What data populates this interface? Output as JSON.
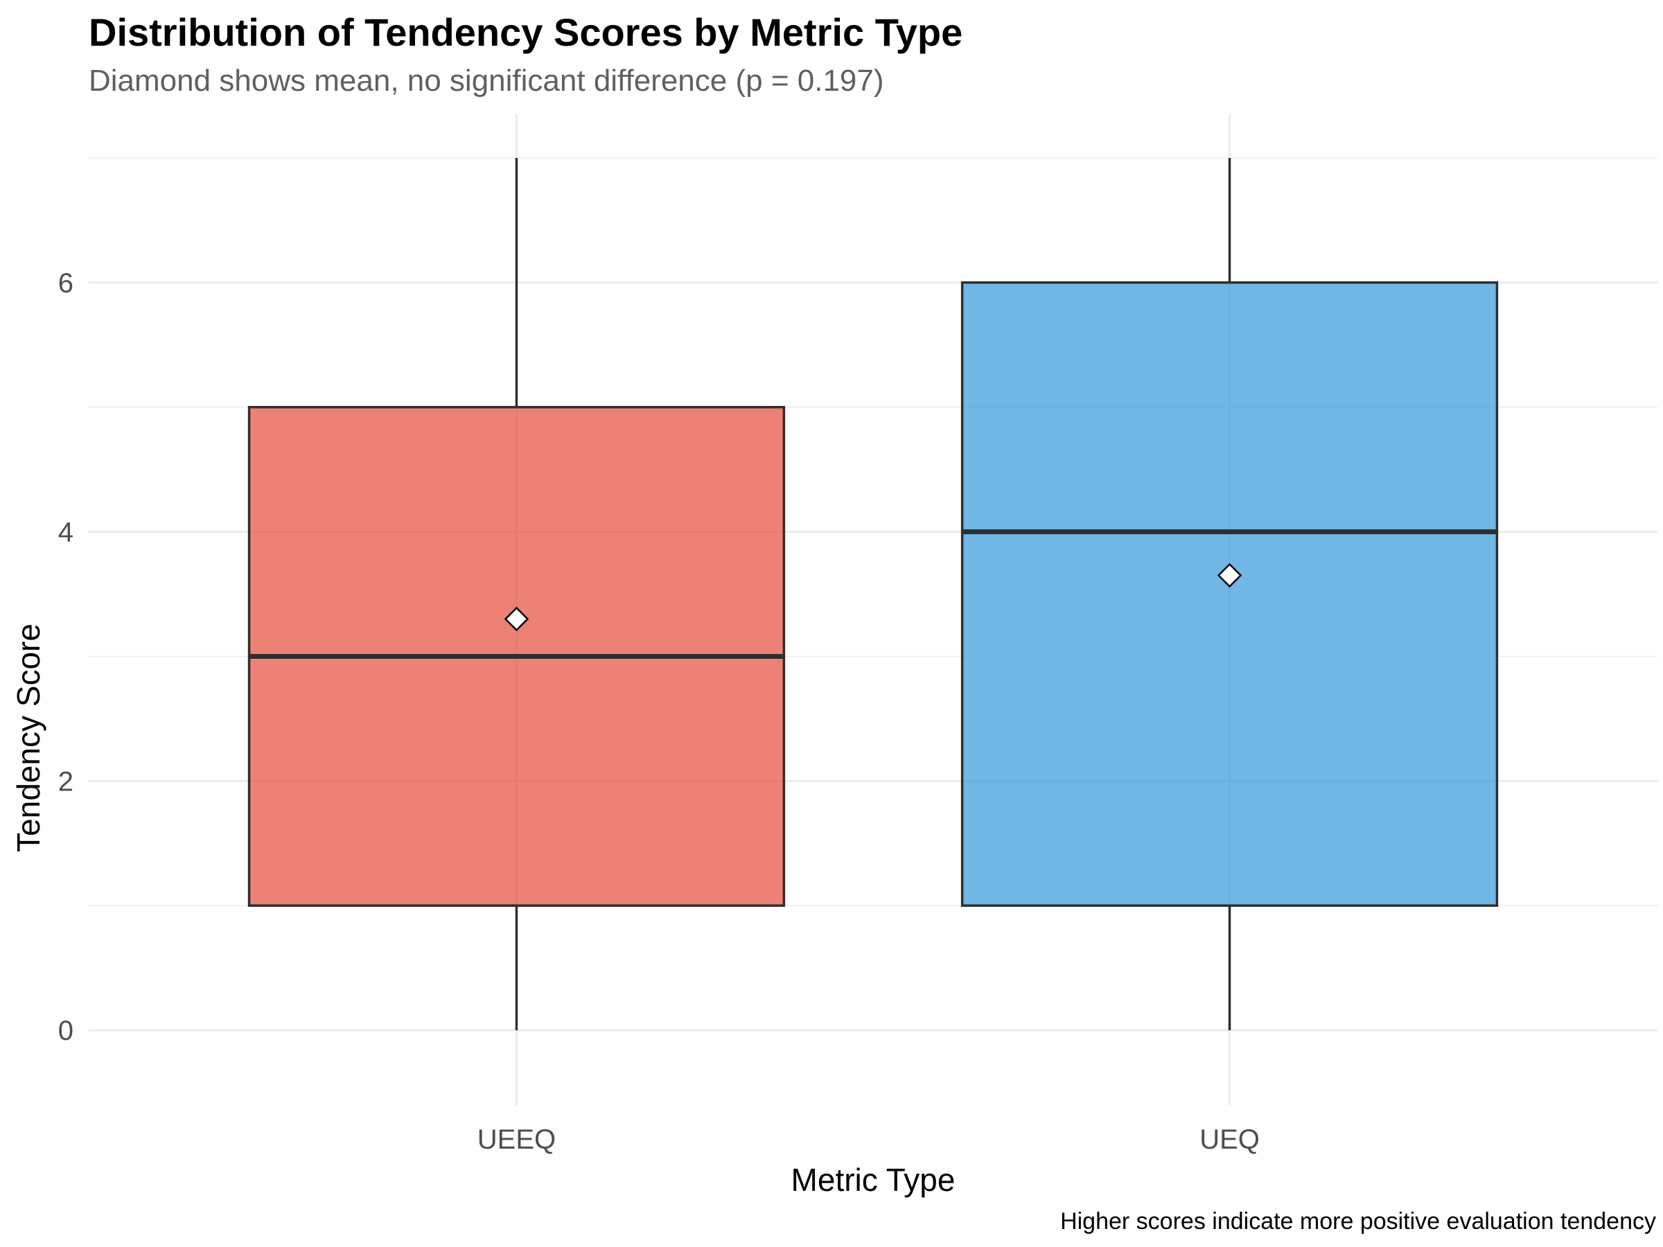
{
  "chart_data": {
    "type": "boxplot",
    "title": "Distribution of Tendency Scores by Metric Type",
    "subtitle": "Diamond shows mean, no significant difference (p = 0.197)",
    "caption": "Higher scores indicate more positive evaluation tendency",
    "xlabel": "Metric Type",
    "ylabel": "Tendency Score",
    "ylim": [
      -0.6,
      7.35
    ],
    "yticks": [
      0,
      2,
      4,
      6
    ],
    "grid": true,
    "legend": "none",
    "categories": [
      "UEEQ",
      "UEQ"
    ],
    "series": [
      {
        "category": "UEEQ",
        "color": "#E74C3C",
        "min": 0,
        "q1": 1,
        "median": 3,
        "q3": 5,
        "max": 7,
        "mean": 3.3
      },
      {
        "category": "UEQ",
        "color": "#3498DB",
        "min": 0,
        "q1": 1,
        "median": 4,
        "q3": 6,
        "max": 7,
        "mean": 3.65
      }
    ]
  }
}
